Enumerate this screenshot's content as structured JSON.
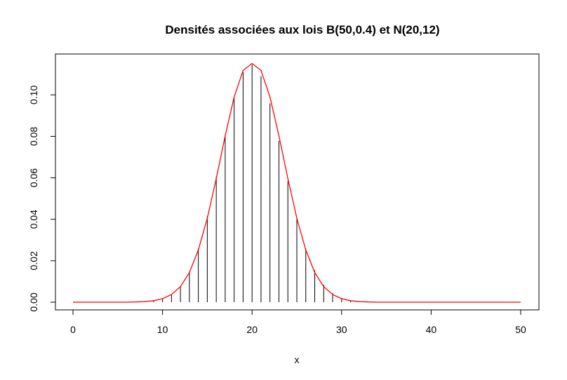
{
  "chart_data": {
    "type": "line",
    "title": "Densités associées aux lois B(50,0.4) et N(20,12)",
    "xlabel": "x",
    "ylabel": "",
    "xlim": [
      0,
      50
    ],
    "ylim": [
      0,
      0.115
    ],
    "x_ticks": [
      0,
      10,
      20,
      30,
      40,
      50
    ],
    "x_tick_labels": [
      "0",
      "10",
      "20",
      "30",
      "40",
      "50"
    ],
    "y_ticks": [
      0,
      0.02,
      0.04,
      0.06,
      0.08,
      0.1
    ],
    "y_tick_labels": [
      "0.00",
      "0.02",
      "0.04",
      "0.06",
      "0.08",
      "0.10"
    ],
    "grid": false,
    "colors": {
      "binomial": "#000000",
      "normal": "#ff0000",
      "frame": "#000000"
    },
    "series": [
      {
        "type": "histogram-spikes",
        "x": [
          0,
          1,
          2,
          3,
          4,
          5,
          6,
          7,
          8,
          9,
          10,
          11,
          12,
          13,
          14,
          15,
          16,
          17,
          18,
          19,
          20,
          21,
          22,
          23,
          24,
          25,
          26,
          27,
          28,
          29,
          30,
          31,
          32,
          33,
          34,
          35,
          36,
          37,
          38,
          39,
          40,
          41,
          42,
          43,
          44,
          45,
          46,
          47,
          48,
          49,
          50
        ],
        "values": [
          0,
          0,
          0,
          0,
          0,
          0,
          0,
          0.0001,
          0.0002,
          0.0006,
          0.0015,
          0.0035,
          0.0076,
          0.0147,
          0.026,
          0.0415,
          0.0606,
          0.0808,
          0.0987,
          0.1109,
          0.1146,
          0.1091,
          0.0959,
          0.0778,
          0.0584,
          0.0405,
          0.0259,
          0.0154,
          0.0084,
          0.0043,
          0.002,
          0.0009,
          0.0003,
          0.0001,
          0,
          0,
          0,
          0,
          0,
          0,
          0,
          0,
          0,
          0,
          0,
          0,
          0,
          0,
          0,
          0,
          0
        ]
      },
      {
        "type": "curve",
        "x": [
          0,
          1,
          2,
          3,
          4,
          5,
          6,
          7,
          8,
          9,
          10,
          11,
          12,
          13,
          14,
          15,
          16,
          17,
          18,
          19,
          20,
          21,
          22,
          23,
          24,
          25,
          26,
          27,
          28,
          29,
          30,
          31,
          32,
          33,
          34,
          35,
          36,
          37,
          38,
          39,
          40,
          41,
          42,
          43,
          44,
          45,
          46,
          47,
          48,
          49,
          50
        ],
        "values": [
          0,
          0,
          0,
          0,
          0,
          0,
          0,
          0.0001,
          0.0003,
          0.0007,
          0.0017,
          0.0037,
          0.0075,
          0.0143,
          0.0252,
          0.0405,
          0.0596,
          0.0803,
          0.099,
          0.1118,
          0.1152,
          0.1118,
          0.099,
          0.0803,
          0.0596,
          0.0405,
          0.0252,
          0.0143,
          0.0075,
          0.0037,
          0.0017,
          0.0007,
          0.0003,
          0.0001,
          0,
          0,
          0,
          0,
          0,
          0,
          0,
          0,
          0,
          0,
          0,
          0,
          0,
          0,
          0,
          0,
          0
        ]
      }
    ]
  }
}
